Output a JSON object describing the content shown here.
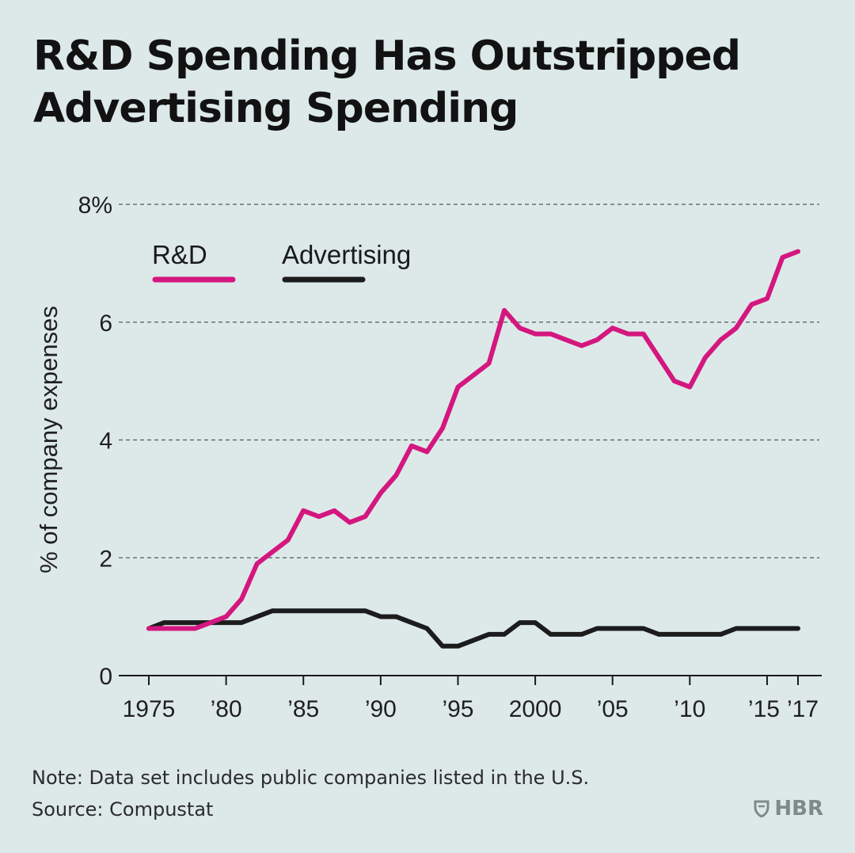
{
  "title_line1": "R&D Spending Has Outstripped",
  "title_line2": "Advertising Spending",
  "note": "Note: Data set includes public companies listed in the U.S.",
  "source": "Source: Compustat",
  "publisher": "HBR",
  "colors": {
    "background": "#dde9e9",
    "rd": "#d4177f",
    "advertising": "#1c1c1c",
    "grid": "#555555"
  },
  "chart_data": {
    "type": "line",
    "title": "R&D Spending Has Outstripped Advertising Spending",
    "xlabel": "",
    "ylabel": "% of company expenses",
    "xlim": [
      1975,
      2017
    ],
    "ylim": [
      0,
      8
    ],
    "grid": "horizontal dashed",
    "legend_position": "top-left",
    "yticks": [
      {
        "value": 0,
        "label": "0"
      },
      {
        "value": 2,
        "label": "2"
      },
      {
        "value": 4,
        "label": "4"
      },
      {
        "value": 6,
        "label": "6"
      },
      {
        "value": 8,
        "label": "8%"
      }
    ],
    "xticks": [
      {
        "value": 1975,
        "label": "1975"
      },
      {
        "value": 1980,
        "label": "’80"
      },
      {
        "value": 1985,
        "label": "’85"
      },
      {
        "value": 1990,
        "label": "’90"
      },
      {
        "value": 1995,
        "label": "’95"
      },
      {
        "value": 2000,
        "label": "2000"
      },
      {
        "value": 2005,
        "label": "’05"
      },
      {
        "value": 2010,
        "label": "’10"
      },
      {
        "value": 2015,
        "label": "’15"
      },
      {
        "value": 2017,
        "label": "’17"
      }
    ],
    "x": [
      1975,
      1976,
      1977,
      1978,
      1979,
      1980,
      1981,
      1982,
      1983,
      1984,
      1985,
      1986,
      1987,
      1988,
      1989,
      1990,
      1991,
      1992,
      1993,
      1994,
      1995,
      1996,
      1997,
      1998,
      1999,
      2000,
      2001,
      2002,
      2003,
      2004,
      2005,
      2006,
      2007,
      2008,
      2009,
      2010,
      2011,
      2012,
      2013,
      2014,
      2015,
      2016,
      2017
    ],
    "series": [
      {
        "name": "R&D",
        "color": "#d4177f",
        "values": [
          0.8,
          0.8,
          0.8,
          0.8,
          0.9,
          1.0,
          1.3,
          1.9,
          2.1,
          2.3,
          2.8,
          2.7,
          2.8,
          2.6,
          2.7,
          3.1,
          3.4,
          3.9,
          3.8,
          4.2,
          4.9,
          5.1,
          5.3,
          6.2,
          5.9,
          5.8,
          5.8,
          5.7,
          5.6,
          5.7,
          5.9,
          5.8,
          5.8,
          5.4,
          5.0,
          4.9,
          5.4,
          5.7,
          5.9,
          6.3,
          6.4,
          7.1,
          7.2
        ]
      },
      {
        "name": "Advertising",
        "color": "#1c1c1c",
        "values": [
          0.8,
          0.9,
          0.9,
          0.9,
          0.9,
          0.9,
          0.9,
          1.0,
          1.1,
          1.1,
          1.1,
          1.1,
          1.1,
          1.1,
          1.1,
          1.0,
          1.0,
          0.9,
          0.8,
          0.5,
          0.5,
          0.6,
          0.7,
          0.7,
          0.9,
          0.9,
          0.7,
          0.7,
          0.7,
          0.8,
          0.8,
          0.8,
          0.8,
          0.7,
          0.7,
          0.7,
          0.7,
          0.7,
          0.8,
          0.8,
          0.8,
          0.8,
          0.8
        ]
      }
    ]
  }
}
